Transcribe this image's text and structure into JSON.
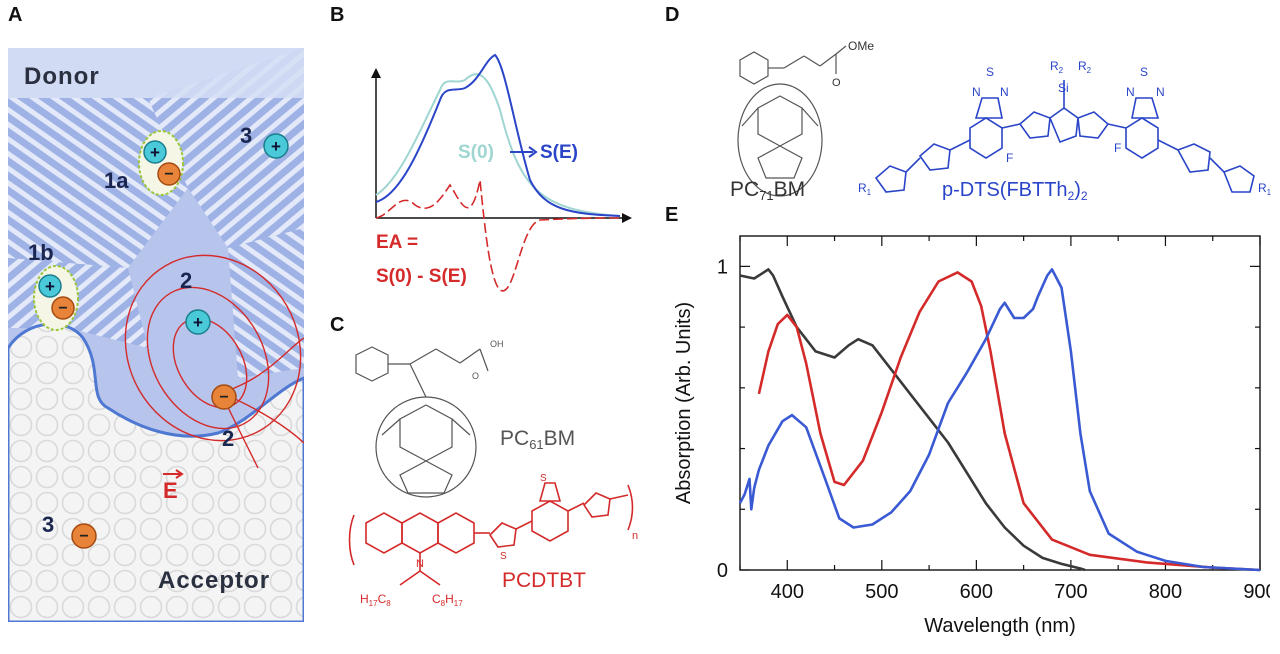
{
  "panel_labels": {
    "a": "A",
    "b": "B",
    "c": "C",
    "d": "D",
    "e": "E"
  },
  "panel_a": {
    "donor": "Donor",
    "acceptor": "Acceptor",
    "label_1a": "1a",
    "label_1b": "1b",
    "label_2_hole": "2",
    "label_2_electron": "2",
    "label_3_hole": "3",
    "label_3_electron": "3",
    "plus_sign": "+",
    "minus_sign": "−",
    "field": "E"
  },
  "panel_b": {
    "s0": "S(0)",
    "se": "S(E)",
    "ea_line1": "EA =",
    "ea_line2": "S(0) - S(E)",
    "colors": {
      "s0": "#9fd6d2",
      "se": "#2a45c8",
      "ea": "#d42a2a"
    }
  },
  "panel_c": {
    "pc61bm_main": "PC",
    "pc61bm_sub": "61",
    "pc61bm_tail": "BM",
    "pcdtbt": "PCDTBT",
    "oh": "OH",
    "o": "O",
    "n": "N",
    "s": "S",
    "n_sub": "n",
    "h17c8": "H",
    "h17c8_sub1": "17",
    "h17c8_c": "C",
    "h17c8_sub2": "8",
    "c8h17": "C",
    "c8h17_sub1": "8",
    "c8h17_h": "H",
    "c8h17_sub2": "17"
  },
  "panel_d": {
    "pc71bm_main": "PC",
    "pc71bm_sub": "71",
    "pc71bm_tail": "BM",
    "ome": "OMe",
    "o": "O",
    "dts_main": "p-DTS(FBTTh",
    "dts_sub": "2",
    "dts_tail": ")",
    "dts_sub2": "2",
    "r": "R",
    "r_sub1": "1",
    "r_sub2": "2",
    "si": "Si",
    "f": "F",
    "n": "N",
    "s": "S"
  },
  "chart_data": {
    "type": "line",
    "xlabel": "Wavelength (nm)",
    "ylabel": "Absorption (Arb. Units)",
    "xlim": [
      350,
      900
    ],
    "ylim": [
      0,
      1.1
    ],
    "xticks": [
      400,
      500,
      600,
      700,
      800,
      900
    ],
    "yticks": [
      0,
      1
    ],
    "series": [
      {
        "color": "#3a3a3a",
        "x": [
          350,
          365,
          380,
          385,
          395,
          410,
          430,
          450,
          465,
          475,
          490,
          510,
          530,
          550,
          570,
          590,
          610,
          630,
          650,
          670,
          690,
          710,
          715
        ],
        "y": [
          0.97,
          0.96,
          0.99,
          0.97,
          0.9,
          0.8,
          0.72,
          0.7,
          0.74,
          0.76,
          0.74,
          0.66,
          0.58,
          0.5,
          0.42,
          0.32,
          0.22,
          0.14,
          0.08,
          0.04,
          0.02,
          0.005,
          0.0
        ]
      },
      {
        "color": "#d42a2a",
        "x": [
          370,
          380,
          390,
          400,
          410,
          420,
          435,
          450,
          460,
          480,
          500,
          520,
          540,
          560,
          580,
          595,
          605,
          615,
          630,
          650,
          680,
          720,
          780,
          850,
          900
        ],
        "y": [
          0.58,
          0.72,
          0.81,
          0.84,
          0.8,
          0.68,
          0.45,
          0.29,
          0.28,
          0.36,
          0.52,
          0.7,
          0.85,
          0.95,
          0.98,
          0.95,
          0.87,
          0.72,
          0.45,
          0.22,
          0.1,
          0.05,
          0.025,
          0.008,
          0.0
        ]
      },
      {
        "color": "#3a5ad4",
        "x": [
          350,
          355,
          360,
          362,
          365,
          370,
          380,
          395,
          405,
          420,
          440,
          455,
          470,
          490,
          510,
          530,
          550,
          570,
          590,
          610,
          625,
          630,
          640,
          650,
          660,
          665,
          675,
          680,
          690,
          700,
          710,
          720,
          740,
          770,
          800,
          840,
          880,
          900
        ],
        "y": [
          0.22,
          0.25,
          0.3,
          0.2,
          0.27,
          0.33,
          0.41,
          0.49,
          0.51,
          0.47,
          0.3,
          0.17,
          0.14,
          0.15,
          0.19,
          0.26,
          0.38,
          0.55,
          0.65,
          0.76,
          0.86,
          0.88,
          0.83,
          0.83,
          0.86,
          0.9,
          0.97,
          0.99,
          0.93,
          0.72,
          0.45,
          0.26,
          0.12,
          0.06,
          0.03,
          0.01,
          0.003,
          0.0
        ]
      }
    ]
  }
}
